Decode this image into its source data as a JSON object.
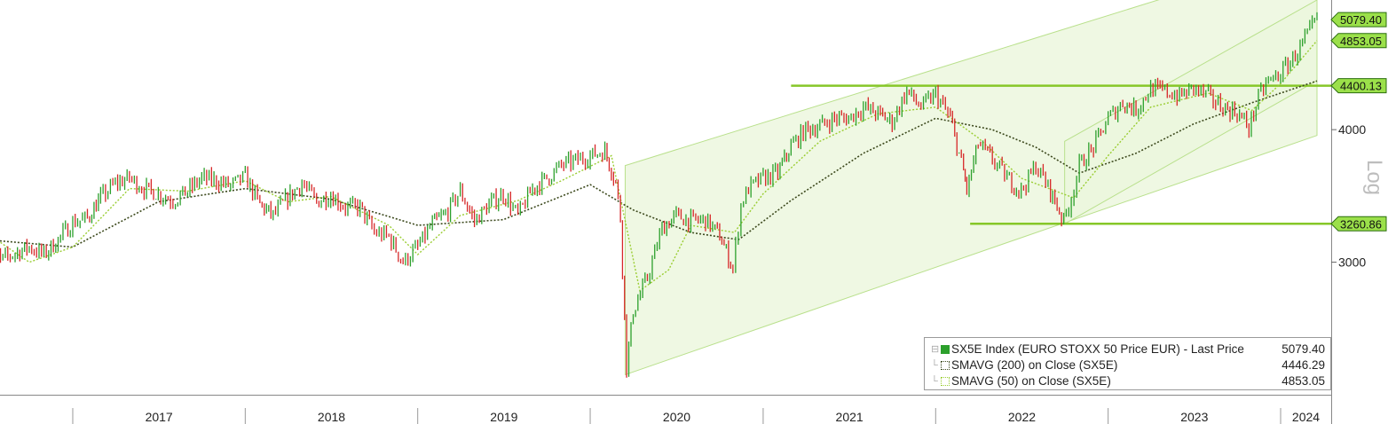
{
  "chart_data": {
    "type": "line",
    "title": "",
    "y_scale": "log",
    "y_axis_label": "Log",
    "y_ticks": [
      3000,
      4000
    ],
    "ylim": [
      2250,
      5300
    ],
    "x_ticks": [
      "2017",
      "2018",
      "2019",
      "2020",
      "2021",
      "2022",
      "2023",
      "2024"
    ],
    "xlim": [
      "2016-07-01",
      "2024-03-18"
    ],
    "grid": false,
    "legend_position": "bottom-right",
    "colors": {
      "price_up": "#2ca02c",
      "price_down": "#d62728",
      "sma200": "#3d4a1e",
      "sma50": "#9acd32",
      "level_line": "#86c728",
      "channel_fill": "#e9f5d9",
      "tag_fill": "#9be04a"
    },
    "series": [
      {
        "name": "SX5E Index (EURO STOXX 50 Price EUR) - Last Price",
        "last": "5079.40",
        "points": [
          [
            "2016-07-01",
            3280
          ],
          [
            "2016-08-01",
            3010
          ],
          [
            "2016-09-01",
            3060
          ],
          [
            "2016-10-01",
            3100
          ],
          [
            "2016-11-01",
            3050
          ],
          [
            "2016-12-01",
            3150
          ],
          [
            "2017-01-01",
            3270
          ],
          [
            "2017-02-01",
            3300
          ],
          [
            "2017-03-01",
            3450
          ],
          [
            "2017-04-01",
            3560
          ],
          [
            "2017-05-01",
            3600
          ],
          [
            "2017-06-01",
            3520
          ],
          [
            "2017-07-01",
            3480
          ],
          [
            "2017-08-01",
            3430
          ],
          [
            "2017-09-01",
            3500
          ],
          [
            "2017-10-01",
            3600
          ],
          [
            "2017-11-01",
            3580
          ],
          [
            "2017-12-01",
            3540
          ],
          [
            "2018-01-01",
            3610
          ],
          [
            "2018-02-01",
            3400
          ],
          [
            "2018-03-01",
            3320
          ],
          [
            "2018-04-01",
            3450
          ],
          [
            "2018-05-01",
            3560
          ],
          [
            "2018-06-01",
            3420
          ],
          [
            "2018-07-01",
            3470
          ],
          [
            "2018-08-01",
            3380
          ],
          [
            "2018-09-01",
            3380
          ],
          [
            "2018-10-01",
            3200
          ],
          [
            "2018-11-01",
            3170
          ],
          [
            "2018-12-01",
            3000
          ],
          [
            "2019-01-01",
            3100
          ],
          [
            "2019-02-01",
            3260
          ],
          [
            "2019-03-01",
            3330
          ],
          [
            "2019-04-01",
            3500
          ],
          [
            "2019-05-01",
            3280
          ],
          [
            "2019-06-01",
            3400
          ],
          [
            "2019-07-01",
            3480
          ],
          [
            "2019-08-01",
            3320
          ],
          [
            "2019-09-01",
            3520
          ],
          [
            "2019-10-01",
            3600
          ],
          [
            "2019-11-01",
            3700
          ],
          [
            "2019-12-01",
            3740
          ],
          [
            "2020-01-01",
            3780
          ],
          [
            "2020-02-01",
            3820
          ],
          [
            "2020-02-24",
            3570
          ],
          [
            "2020-03-05",
            3300
          ],
          [
            "2020-03-18",
            2390
          ],
          [
            "2020-04-01",
            2700
          ],
          [
            "2020-05-01",
            2900
          ],
          [
            "2020-06-01",
            3230
          ],
          [
            "2020-07-01",
            3320
          ],
          [
            "2020-08-01",
            3280
          ],
          [
            "2020-09-01",
            3290
          ],
          [
            "2020-10-01",
            3180
          ],
          [
            "2020-10-29",
            2960
          ],
          [
            "2020-11-15",
            3400
          ],
          [
            "2020-12-01",
            3520
          ],
          [
            "2021-01-01",
            3600
          ],
          [
            "2021-02-01",
            3640
          ],
          [
            "2021-03-01",
            3860
          ],
          [
            "2021-04-01",
            4000
          ],
          [
            "2021-05-01",
            4030
          ],
          [
            "2021-06-01",
            4100
          ],
          [
            "2021-07-01",
            4100
          ],
          [
            "2021-08-01",
            4200
          ],
          [
            "2021-09-01",
            4140
          ],
          [
            "2021-10-01",
            4070
          ],
          [
            "2021-11-01",
            4350
          ],
          [
            "2021-12-01",
            4200
          ],
          [
            "2022-01-01",
            4320
          ],
          [
            "2022-02-01",
            4100
          ],
          [
            "2022-03-01",
            3650
          ],
          [
            "2022-03-08",
            3510
          ],
          [
            "2022-04-01",
            3880
          ],
          [
            "2022-05-01",
            3750
          ],
          [
            "2022-06-01",
            3600
          ],
          [
            "2022-07-01",
            3500
          ],
          [
            "2022-08-01",
            3700
          ],
          [
            "2022-09-01",
            3500
          ],
          [
            "2022-09-29",
            3280
          ],
          [
            "2022-10-15",
            3450
          ],
          [
            "2022-11-01",
            3700
          ],
          [
            "2022-12-01",
            3850
          ],
          [
            "2023-01-01",
            4100
          ],
          [
            "2023-02-01",
            4240
          ],
          [
            "2023-03-01",
            4180
          ],
          [
            "2023-04-01",
            4370
          ],
          [
            "2023-05-01",
            4350
          ],
          [
            "2023-06-01",
            4300
          ],
          [
            "2023-07-01",
            4380
          ],
          [
            "2023-08-01",
            4300
          ],
          [
            "2023-09-01",
            4200
          ],
          [
            "2023-10-01",
            4150
          ],
          [
            "2023-10-26",
            4020
          ],
          [
            "2023-11-15",
            4280
          ],
          [
            "2023-12-01",
            4420
          ],
          [
            "2024-01-01",
            4520
          ],
          [
            "2024-02-01",
            4700
          ],
          [
            "2024-03-18",
            5079.4
          ]
        ]
      },
      {
        "name": "SMAVG (200)  on Close (SX5E)",
        "last": "4446.29",
        "points": [
          [
            "2016-07-01",
            3150
          ],
          [
            "2017-01-01",
            3100
          ],
          [
            "2017-07-01",
            3420
          ],
          [
            "2018-01-01",
            3520
          ],
          [
            "2018-07-01",
            3440
          ],
          [
            "2019-01-01",
            3250
          ],
          [
            "2019-07-01",
            3290
          ],
          [
            "2020-01-01",
            3550
          ],
          [
            "2020-04-01",
            3360
          ],
          [
            "2020-08-01",
            3200
          ],
          [
            "2020-11-10",
            3150
          ],
          [
            "2021-03-01",
            3430
          ],
          [
            "2021-08-01",
            3800
          ],
          [
            "2022-01-01",
            4100
          ],
          [
            "2022-05-01",
            4000
          ],
          [
            "2022-08-01",
            3850
          ],
          [
            "2022-11-01",
            3640
          ],
          [
            "2023-03-01",
            3800
          ],
          [
            "2023-07-01",
            4050
          ],
          [
            "2023-11-01",
            4240
          ],
          [
            "2024-03-18",
            4446.29
          ]
        ]
      },
      {
        "name": "SMAVG (50)  on Close (SX5E)",
        "last": "4853.05",
        "points": [
          [
            "2016-07-01",
            3200
          ],
          [
            "2016-10-01",
            3000
          ],
          [
            "2017-01-01",
            3100
          ],
          [
            "2017-05-01",
            3520
          ],
          [
            "2017-09-01",
            3500
          ],
          [
            "2018-01-01",
            3580
          ],
          [
            "2018-04-01",
            3420
          ],
          [
            "2018-07-01",
            3460
          ],
          [
            "2018-11-01",
            3250
          ],
          [
            "2019-01-01",
            3050
          ],
          [
            "2019-04-01",
            3320
          ],
          [
            "2019-08-01",
            3430
          ],
          [
            "2019-11-01",
            3580
          ],
          [
            "2020-02-15",
            3780
          ],
          [
            "2020-04-15",
            2820
          ],
          [
            "2020-06-15",
            2950
          ],
          [
            "2020-08-01",
            3250
          ],
          [
            "2020-11-01",
            3200
          ],
          [
            "2021-01-01",
            3480
          ],
          [
            "2021-05-01",
            3900
          ],
          [
            "2021-09-01",
            4140
          ],
          [
            "2022-01-01",
            4200
          ],
          [
            "2022-04-01",
            3930
          ],
          [
            "2022-07-01",
            3600
          ],
          [
            "2022-10-20",
            3450
          ],
          [
            "2023-01-01",
            3780
          ],
          [
            "2023-04-01",
            4200
          ],
          [
            "2023-08-01",
            4330
          ],
          [
            "2023-11-01",
            4170
          ],
          [
            "2024-01-01",
            4420
          ],
          [
            "2024-03-18",
            4853.05
          ]
        ]
      }
    ],
    "right_axis_tags": [
      {
        "label": "5079.40",
        "value": 5079.4
      },
      {
        "label": "4853.05",
        "value": 4853.05
      },
      {
        "label": "4400.13",
        "value": 4400.13
      },
      {
        "label": "3260.86",
        "value": 3260.86
      }
    ],
    "horizontal_levels": [
      {
        "value": 4400.13,
        "from": "2021-03-01",
        "to": "2024-03-18"
      },
      {
        "value": 3260.86,
        "from": "2022-03-15",
        "to": "2024-03-18"
      }
    ],
    "channels": [
      {
        "from": "2020-03-15",
        "lower_start": 2350,
        "upper_start": 3700,
        "to": "2024-03-18",
        "lower_end": 3950,
        "upper_end": 5900
      },
      {
        "from": "2022-10-01",
        "lower_start": 3260,
        "upper_start": 3900,
        "to": "2024-03-18",
        "lower_end": 4450,
        "upper_end": 5300
      }
    ]
  }
}
